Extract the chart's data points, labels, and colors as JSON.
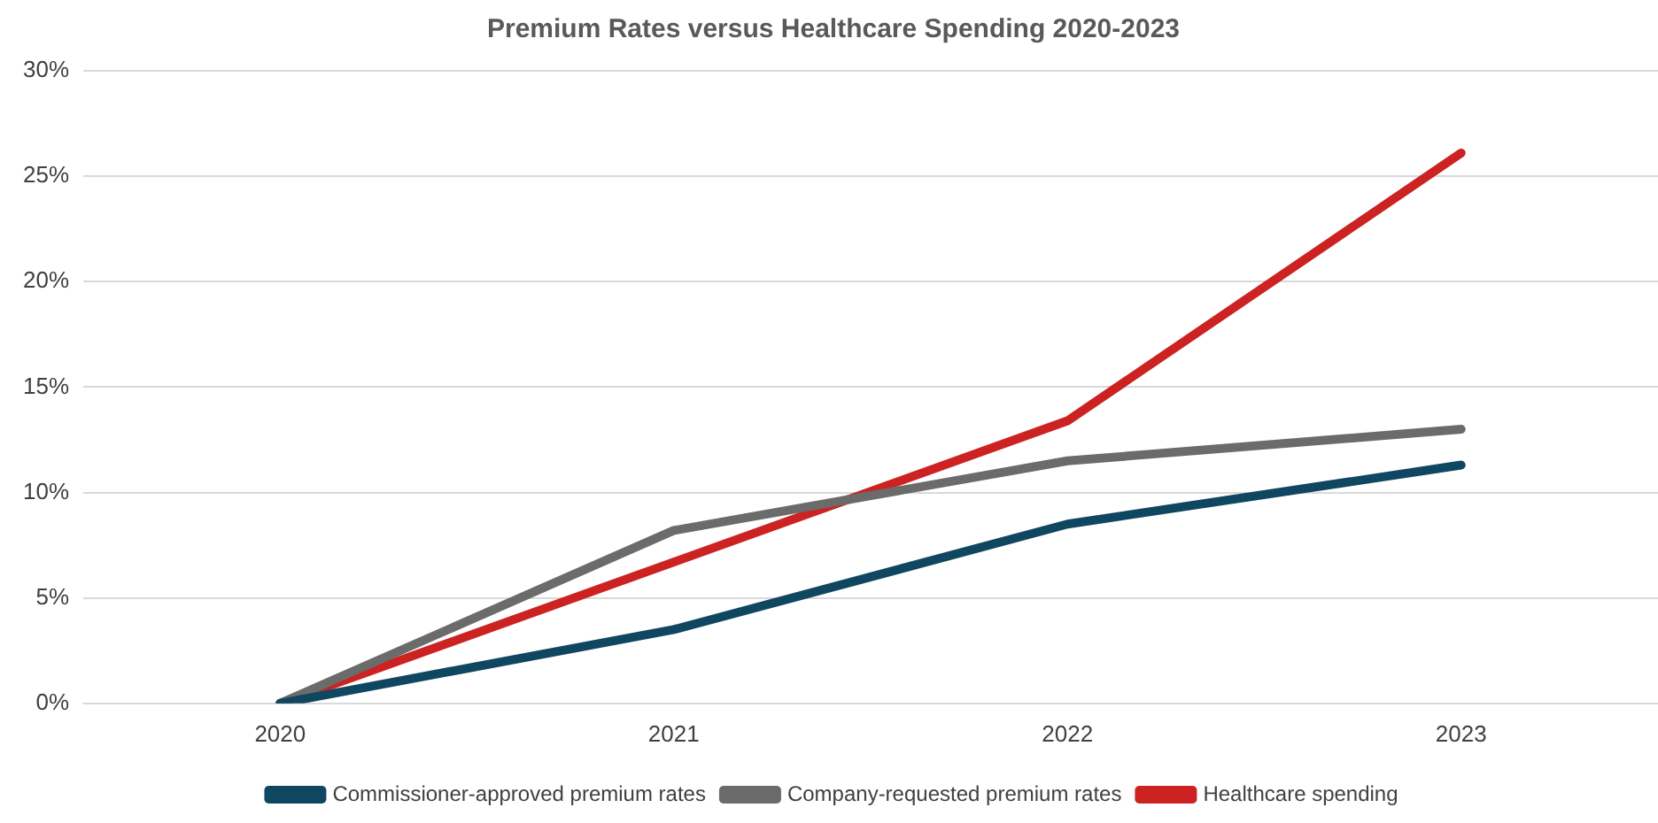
{
  "chart_data": {
    "type": "line",
    "title": "Premium Rates versus Healthcare Spending 2020-2023",
    "categories": [
      "2020",
      "2021",
      "2022",
      "2023"
    ],
    "series": [
      {
        "name": "Commissioner-approved premium rates",
        "color": "#0f4761",
        "values": [
          0,
          3.5,
          8.5,
          11.3
        ]
      },
      {
        "name": "Company-requested premium rates",
        "color": "#6b6b6b",
        "values": [
          0,
          8.2,
          11.5,
          13.0
        ]
      },
      {
        "name": "Healthcare spending",
        "color": "#cc2222",
        "values": [
          0,
          6.7,
          13.4,
          26.1
        ]
      }
    ],
    "ylim": [
      0,
      30
    ],
    "yticks": [
      {
        "value": 0,
        "label": "0%"
      },
      {
        "value": 5,
        "label": "5%"
      },
      {
        "value": 10,
        "label": "10%"
      },
      {
        "value": 15,
        "label": "15%"
      },
      {
        "value": 20,
        "label": "20%"
      },
      {
        "value": 25,
        "label": "25%"
      },
      {
        "value": 30,
        "label": "30%"
      }
    ],
    "grid": "y",
    "legend": "bottom",
    "marker": "none",
    "line_style": "solid"
  }
}
